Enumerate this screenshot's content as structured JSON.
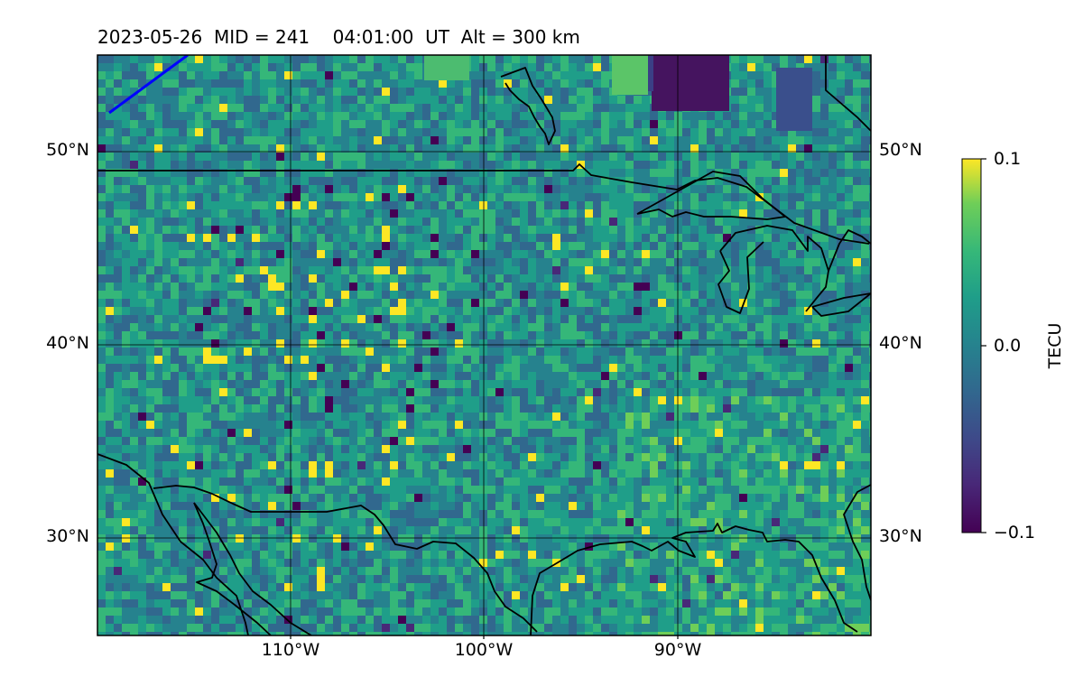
{
  "title": "2023-05-26  MID = 241    04:01:00  UT  Alt = 300 km",
  "map": {
    "lat_labels": [
      "50°N",
      "40°N",
      "30°N"
    ],
    "lon_labels": [
      "110°W",
      "100°W",
      "90°W"
    ],
    "lat_range": [
      25,
      55
    ],
    "lon_range": [
      -120,
      -80
    ],
    "gridlines": true
  },
  "colorbar": {
    "label": "TECU",
    "colormap": "viridis",
    "ticks": [
      "0.1",
      "0.0",
      "−0.1"
    ],
    "range": [
      -0.1,
      0.1
    ]
  },
  "colors": {
    "coastline": "#000000",
    "track": "#0000ff"
  }
}
